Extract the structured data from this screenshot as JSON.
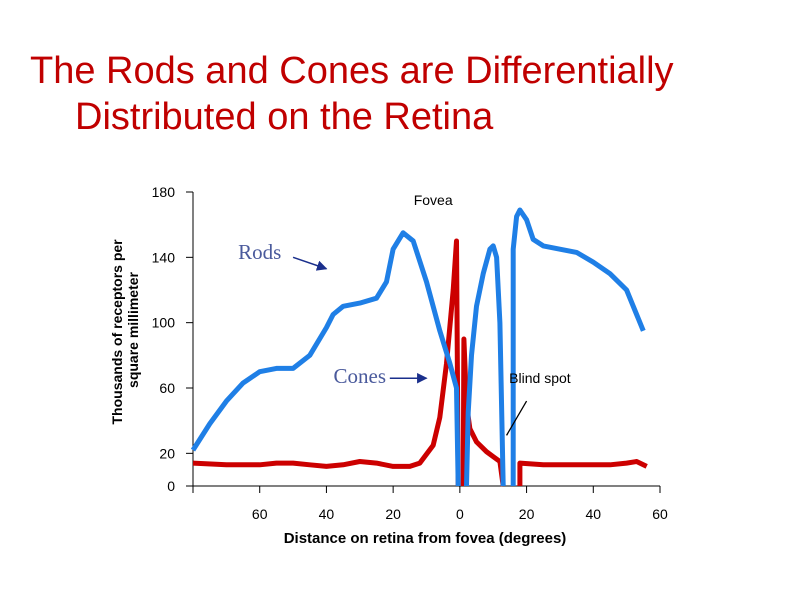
{
  "slide": {
    "title_line1": "The Rods and Cones are Differentially",
    "title_line2": "Distributed on the Retina"
  },
  "colors": {
    "title": "#c00000",
    "rods": "#1f7fe6",
    "cones": "#cc0000",
    "axis": "#000000",
    "arrow": "#1a2f8c"
  },
  "chart_data": {
    "type": "line",
    "xlabel": "Distance on retina from fovea (degrees)",
    "ylabel_line1": "Thousands of receptors per",
    "ylabel_line2": "square millimeter",
    "ylim": [
      0,
      180
    ],
    "xlim": [
      -80,
      60
    ],
    "yticks": [
      0,
      20,
      60,
      100,
      140,
      180
    ],
    "xticks": [
      -80,
      -60,
      -40,
      -20,
      0,
      20,
      40,
      60
    ],
    "xtick_labels": [
      "",
      "60",
      "40",
      "20",
      "0",
      "20",
      "40",
      "60"
    ],
    "grid": false,
    "annotations": [
      {
        "name": "fovea",
        "text": "Fovea",
        "x": -8,
        "y": 172
      },
      {
        "name": "rods",
        "text": "Rods",
        "x": -60,
        "y": 139
      },
      {
        "name": "cones",
        "text": "Cones",
        "x": -30,
        "y": 63
      },
      {
        "name": "blind-spot",
        "text": "Blind spot",
        "x": 24,
        "y": 63
      }
    ],
    "series": [
      {
        "name": "Rods",
        "segments": [
          [
            [
              -80,
              22
            ],
            [
              -75,
              38
            ],
            [
              -70,
              52
            ],
            [
              -65,
              63
            ],
            [
              -60,
              70
            ],
            [
              -55,
              72
            ],
            [
              -50,
              72
            ],
            [
              -45,
              80
            ],
            [
              -40,
              97
            ],
            [
              -38,
              105
            ],
            [
              -35,
              110
            ],
            [
              -30,
              112
            ],
            [
              -25,
              115
            ],
            [
              -22,
              125
            ],
            [
              -20,
              145
            ],
            [
              -17,
              155
            ],
            [
              -14,
              150
            ],
            [
              -10,
              125
            ],
            [
              -6,
              95
            ],
            [
              -3,
              75
            ],
            [
              -1,
              60
            ],
            [
              -0.5,
              0
            ]
          ],
          [
            [
              2,
              0
            ],
            [
              2.5,
              45
            ],
            [
              3.5,
              80
            ],
            [
              5,
              110
            ],
            [
              7,
              130
            ],
            [
              9,
              145
            ],
            [
              10,
              147
            ],
            [
              11,
              140
            ],
            [
              12,
              100
            ],
            [
              13,
              0
            ]
          ],
          [
            [
              16,
              0
            ],
            [
              16,
              145
            ],
            [
              17,
              165
            ],
            [
              18,
              169
            ],
            [
              20,
              163
            ],
            [
              22,
              151
            ],
            [
              25,
              147
            ],
            [
              30,
              145
            ],
            [
              35,
              143
            ],
            [
              40,
              137
            ],
            [
              45,
              130
            ],
            [
              50,
              120
            ],
            [
              55,
              95
            ]
          ]
        ]
      },
      {
        "name": "Cones",
        "segments": [
          [
            [
              -80,
              14
            ],
            [
              -70,
              13
            ],
            [
              -60,
              13
            ],
            [
              -55,
              14
            ],
            [
              -50,
              14
            ],
            [
              -45,
              13
            ],
            [
              -40,
              12
            ],
            [
              -35,
              13
            ],
            [
              -30,
              15
            ],
            [
              -25,
              14
            ],
            [
              -20,
              12
            ],
            [
              -15,
              12
            ],
            [
              -12,
              14
            ],
            [
              -8,
              25
            ],
            [
              -6,
              42
            ],
            [
              -4,
              75
            ],
            [
              -2,
              120
            ],
            [
              -1,
              150
            ],
            [
              -0.5,
              0
            ]
          ],
          [
            [
              1,
              0
            ],
            [
              1.2,
              90
            ],
            [
              2,
              50
            ],
            [
              3,
              35
            ],
            [
              5,
              27
            ],
            [
              8,
              21
            ],
            [
              10,
              18
            ],
            [
              12,
              15
            ],
            [
              13,
              0
            ]
          ],
          [
            [
              18,
              0
            ],
            [
              18,
              14
            ],
            [
              25,
              13
            ],
            [
              30,
              13
            ],
            [
              35,
              13
            ],
            [
              40,
              13
            ],
            [
              45,
              13
            ],
            [
              50,
              14
            ],
            [
              53,
              15
            ],
            [
              56,
              12
            ]
          ]
        ]
      }
    ]
  }
}
